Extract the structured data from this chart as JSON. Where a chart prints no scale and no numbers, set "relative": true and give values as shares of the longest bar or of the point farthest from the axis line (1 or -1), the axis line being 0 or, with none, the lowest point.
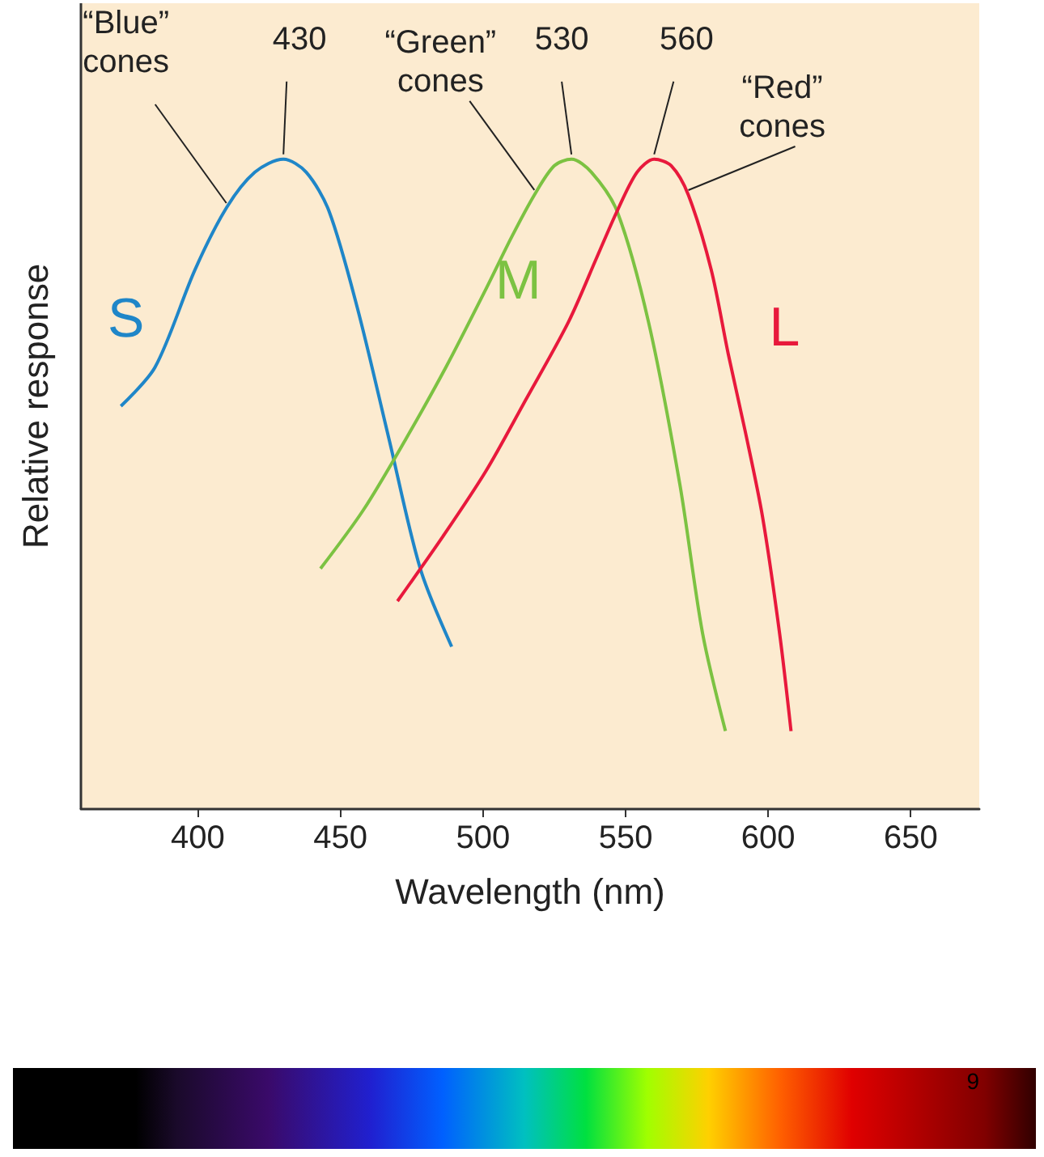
{
  "chart_data": {
    "type": "line",
    "relative": true,
    "xlabel": "Wavelength (nm)",
    "ylabel": "Relative response",
    "xlim": [
      359,
      674
    ],
    "xticks": [
      400,
      450,
      500,
      550,
      600,
      650
    ],
    "legend": false,
    "grid": false,
    "marker": "none",
    "line_style": "solid",
    "series": [
      {
        "name": "S",
        "color": "#1f86c8",
        "x": [
          373,
          385,
          399,
          410,
          420,
          430,
          438,
          446,
          456,
          467,
          478,
          489
        ],
        "values": [
          0.62,
          0.68,
          0.83,
          0.925,
          0.98,
          1.0,
          0.98,
          0.92,
          0.77,
          0.57,
          0.37,
          0.25
        ]
      },
      {
        "name": "M",
        "color": "#7cc242",
        "x": [
          443,
          458,
          473,
          487,
          501,
          510,
          518,
          525,
          531,
          538,
          547,
          558,
          569,
          577,
          585
        ],
        "values": [
          0.37,
          0.46,
          0.57,
          0.68,
          0.8,
          0.88,
          0.945,
          0.99,
          1.0,
          0.98,
          0.92,
          0.75,
          0.5,
          0.27,
          0.12
        ]
      },
      {
        "name": "L",
        "color": "#e8193c",
        "x": [
          470,
          486,
          501,
          515,
          530,
          540,
          547,
          554,
          560,
          566,
          572,
          580,
          586,
          592,
          598,
          604,
          608
        ],
        "values": [
          0.32,
          0.42,
          0.52,
          0.63,
          0.75,
          0.85,
          0.92,
          0.98,
          1.0,
          0.99,
          0.945,
          0.83,
          0.7,
          0.58,
          0.45,
          0.27,
          0.12
        ]
      }
    ],
    "annotations": [
      {
        "text": "430",
        "x": 430,
        "y": 1.0
      },
      {
        "text": "530",
        "x": 531,
        "y": 1.0
      },
      {
        "text": "560",
        "x": 560,
        "y": 1.0
      },
      {
        "text": "“Blue”\ncones",
        "x": 410,
        "y": 0.925
      },
      {
        "text": "“Green”\ncones",
        "x": 518,
        "y": 0.945
      },
      {
        "text": "“Red”\ncones",
        "x": 572,
        "y": 0.945
      },
      "9"
    ]
  }
}
